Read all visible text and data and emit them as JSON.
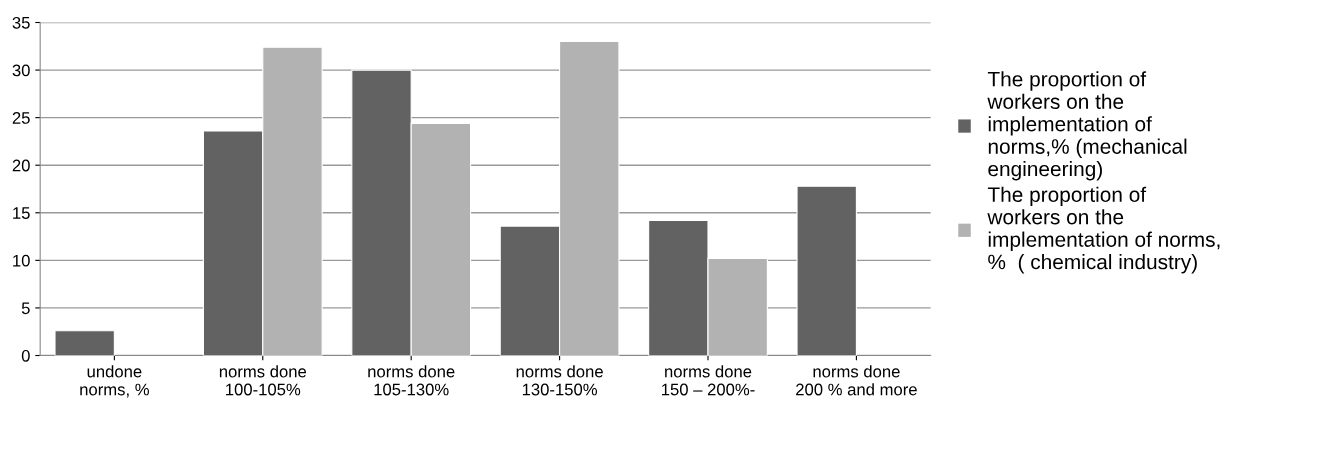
{
  "chart_data": {
    "type": "bar",
    "categories": [
      "undone\nnorms, %",
      "norms done\n100-105%",
      "norms done\n105-130%",
      "norms done\n130-150%",
      "norms done\n150 – 200%-",
      "norms done\n200 % and more"
    ],
    "series": [
      {
        "name": "The proportion of workers on the implementation of norms,% (mechanical engineering)",
        "color": "#626262",
        "values": [
          2.6,
          23.6,
          30,
          13.6,
          14.2,
          17.8
        ]
      },
      {
        "name": "The proportion of workers on the implementation of norms, %  ( chemical industry)",
        "color": "#b2b2b2",
        "values": [
          null,
          32.4,
          24.4,
          33.0,
          10.2,
          null
        ]
      }
    ],
    "ylim": [
      0,
      35
    ],
    "yticks": [
      0,
      5,
      10,
      15,
      20,
      25,
      30,
      35
    ],
    "grid": "y",
    "legend": "right"
  }
}
